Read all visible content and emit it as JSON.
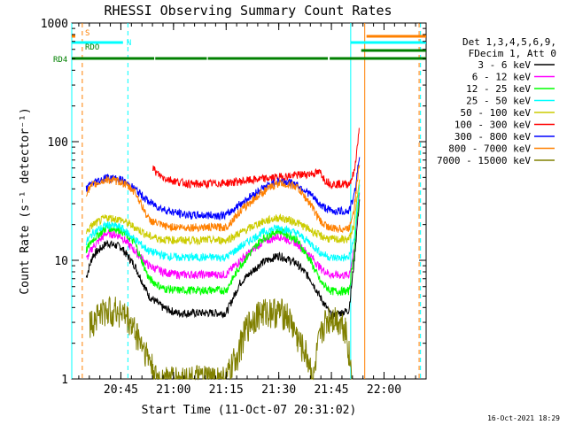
{
  "chart_data": {
    "type": "line",
    "title": "RHESSI Observing Summary Count Rates",
    "xlabel": "Start Time (11-Oct-07 20:31:02)",
    "ylabel": "Count Rate (s⁻¹ detector⁻¹)",
    "y_scale": "log",
    "ylim": [
      1,
      1000
    ],
    "xlim_minutes": [
      0,
      101
    ],
    "x_ticks": [
      {
        "label": "20:45",
        "minute": 14
      },
      {
        "label": "21:00",
        "minute": 29
      },
      {
        "label": "21:15",
        "minute": 44
      },
      {
        "label": "21:30",
        "minute": 59
      },
      {
        "label": "21:45",
        "minute": 74
      },
      {
        "label": "22:00",
        "minute": 89
      }
    ],
    "y_ticks": [
      {
        "label": "1",
        "value": 1
      },
      {
        "label": "10",
        "value": 10
      },
      {
        "label": "100",
        "value": 100
      },
      {
        "label": "1000",
        "value": 1000
      }
    ],
    "legend_title": [
      "Det 1,3,4,5,6,9,",
      "FDecim 1, Att 0"
    ],
    "legend_position": "right",
    "series": [
      {
        "name": "3 - 6 keV",
        "color": "#000000",
        "points": [
          [
            4,
            7
          ],
          [
            6,
            11
          ],
          [
            10,
            14
          ],
          [
            14,
            13
          ],
          [
            18,
            9
          ],
          [
            22,
            5
          ],
          [
            26,
            4
          ],
          [
            30,
            3.6
          ],
          [
            34,
            3.6
          ],
          [
            38,
            3.6
          ],
          [
            44,
            3.6
          ],
          [
            48,
            6.5
          ],
          [
            54,
            9.5
          ],
          [
            59,
            11
          ],
          [
            64,
            9.5
          ],
          [
            68,
            7
          ],
          [
            71,
            4.8
          ],
          [
            74,
            3.4
          ],
          [
            79,
            3.8
          ],
          [
            80.5,
            10
          ],
          [
            82,
            33
          ]
        ]
      },
      {
        "name": "6 - 12 keV",
        "color": "#ff00ff",
        "points": [
          [
            4,
            10
          ],
          [
            6,
            13
          ],
          [
            10,
            17
          ],
          [
            14,
            16
          ],
          [
            18,
            12
          ],
          [
            22,
            9
          ],
          [
            26,
            8
          ],
          [
            30,
            7.6
          ],
          [
            34,
            7.6
          ],
          [
            38,
            7.6
          ],
          [
            44,
            7.6
          ],
          [
            48,
            10
          ],
          [
            54,
            14
          ],
          [
            59,
            16
          ],
          [
            64,
            14
          ],
          [
            68,
            11
          ],
          [
            71,
            8.5
          ],
          [
            74,
            7.5
          ],
          [
            79,
            7.5
          ],
          [
            80.5,
            12
          ],
          [
            82,
            38
          ]
        ]
      },
      {
        "name": "12 - 25 keV",
        "color": "#00ff00",
        "points": [
          [
            4,
            12
          ],
          [
            6,
            15
          ],
          [
            10,
            19
          ],
          [
            14,
            18
          ],
          [
            18,
            14
          ],
          [
            22,
            7
          ],
          [
            26,
            5.8
          ],
          [
            30,
            5.6
          ],
          [
            34,
            5.6
          ],
          [
            38,
            5.6
          ],
          [
            44,
            5.6
          ],
          [
            48,
            9
          ],
          [
            54,
            15
          ],
          [
            59,
            18
          ],
          [
            64,
            15
          ],
          [
            68,
            10
          ],
          [
            71,
            6.5
          ],
          [
            74,
            5.5
          ],
          [
            79,
            5.5
          ],
          [
            80.5,
            12
          ],
          [
            82,
            40
          ]
        ]
      },
      {
        "name": "25 - 50 keV",
        "color": "#00ffff",
        "points": [
          [
            4,
            14
          ],
          [
            6,
            17
          ],
          [
            10,
            20
          ],
          [
            14,
            19
          ],
          [
            18,
            15
          ],
          [
            22,
            12
          ],
          [
            26,
            11
          ],
          [
            30,
            10.6
          ],
          [
            34,
            10.6
          ],
          [
            38,
            10.6
          ],
          [
            44,
            10.6
          ],
          [
            48,
            13
          ],
          [
            54,
            17
          ],
          [
            59,
            19
          ],
          [
            64,
            17
          ],
          [
            68,
            14
          ],
          [
            71,
            11.5
          ],
          [
            74,
            10.5
          ],
          [
            79,
            10.5
          ],
          [
            80.5,
            15
          ],
          [
            82,
            45
          ]
        ]
      },
      {
        "name": "50 - 100 keV",
        "color": "#cccc00",
        "points": [
          [
            4,
            17
          ],
          [
            6,
            20
          ],
          [
            10,
            23
          ],
          [
            14,
            22
          ],
          [
            18,
            19
          ],
          [
            22,
            16
          ],
          [
            26,
            15
          ],
          [
            30,
            14.8
          ],
          [
            34,
            14.8
          ],
          [
            38,
            14.8
          ],
          [
            44,
            14.8
          ],
          [
            48,
            17
          ],
          [
            54,
            21
          ],
          [
            59,
            23
          ],
          [
            64,
            21
          ],
          [
            68,
            18
          ],
          [
            71,
            16
          ],
          [
            74,
            15
          ],
          [
            79,
            15
          ],
          [
            80.5,
            20
          ],
          [
            82,
            52
          ]
        ]
      },
      {
        "name": "100 - 300 keV",
        "color": "#ff0000",
        "points": [
          [
            23,
            62
          ],
          [
            24,
            55
          ],
          [
            26,
            50
          ],
          [
            30,
            46
          ],
          [
            34,
            44
          ],
          [
            38,
            44
          ],
          [
            44,
            45
          ],
          [
            71,
            55
          ],
          [
            72,
            48
          ],
          [
            74,
            44
          ],
          [
            79,
            44
          ],
          [
            80.5,
            55
          ],
          [
            82,
            130
          ]
        ]
      },
      {
        "name": "300 - 800 keV",
        "color": "#0000ff",
        "points": [
          [
            4,
            40
          ],
          [
            6,
            45
          ],
          [
            10,
            50
          ],
          [
            14,
            48
          ],
          [
            18,
            40
          ],
          [
            22,
            31
          ],
          [
            26,
            27
          ],
          [
            30,
            25
          ],
          [
            34,
            24
          ],
          [
            38,
            24
          ],
          [
            44,
            24
          ],
          [
            48,
            30
          ],
          [
            54,
            40
          ],
          [
            59,
            47
          ],
          [
            64,
            44
          ],
          [
            68,
            36
          ],
          [
            71,
            29
          ],
          [
            74,
            26
          ],
          [
            79,
            26
          ],
          [
            80.5,
            35
          ],
          [
            82,
            75
          ]
        ]
      },
      {
        "name": "800 - 7000 keV",
        "color": "#ff8000",
        "points": [
          [
            4,
            37
          ],
          [
            6,
            43
          ],
          [
            10,
            48
          ],
          [
            14,
            46
          ],
          [
            18,
            38
          ],
          [
            22,
            22
          ],
          [
            26,
            19.5
          ],
          [
            30,
            19
          ],
          [
            34,
            19
          ],
          [
            38,
            19
          ],
          [
            44,
            19
          ],
          [
            48,
            26
          ],
          [
            54,
            37
          ],
          [
            59,
            45
          ],
          [
            64,
            42
          ],
          [
            68,
            30
          ],
          [
            71,
            21
          ],
          [
            74,
            18.5
          ],
          [
            79,
            18.5
          ],
          [
            80.5,
            28
          ],
          [
            82,
            68
          ]
        ]
      },
      {
        "name": "7000 - 15000 keV",
        "color": "#808000",
        "points": [
          [
            5,
            2.8
          ],
          [
            7,
            3.5
          ],
          [
            10,
            3.8
          ],
          [
            14,
            3.8
          ],
          [
            16,
            3.2
          ],
          [
            18,
            2.6
          ],
          [
            20,
            2
          ],
          [
            22,
            1.5
          ],
          [
            24,
            1
          ],
          [
            44,
            1
          ],
          [
            47,
            1.6
          ],
          [
            50,
            2.8
          ],
          [
            53,
            3.6
          ],
          [
            57,
            3.8
          ],
          [
            61,
            3.6
          ],
          [
            63,
            2.8
          ],
          [
            65,
            2
          ],
          [
            67,
            1.6
          ],
          [
            69,
            1
          ],
          [
            70,
            1.8
          ],
          [
            72,
            3
          ],
          [
            74,
            3.4
          ],
          [
            76,
            3.2
          ],
          [
            78,
            2.8
          ],
          [
            80,
            1
          ]
        ]
      }
    ],
    "state_bars": [
      {
        "label": "S",
        "color": "#ff8000",
        "segments": [
          [
            0,
            1
          ]
        ]
      },
      {
        "label": "N",
        "color": "#00ffff",
        "segments": [
          [
            0,
            14.6
          ]
        ]
      },
      {
        "label": "RDO",
        "color": "#008000",
        "segments": [
          [
            82.5,
            101
          ]
        ]
      },
      {
        "label": "RD4",
        "color": "#008000",
        "segments": [
          [
            0,
            23.5
          ],
          [
            23.8,
            38.5
          ],
          [
            38.8,
            73
          ],
          [
            73.5,
            101
          ]
        ]
      }
    ],
    "state_bars_right": [
      {
        "label": "S",
        "color": "#ff8000",
        "segments": [
          [
            84,
            101
          ]
        ]
      },
      {
        "label": "N",
        "color": "#00ffff",
        "segments": [
          [
            79.5,
            101
          ]
        ]
      }
    ],
    "vertical_markers": [
      {
        "minute": 0,
        "color": "#00ffff",
        "style": "solid"
      },
      {
        "minute": 3,
        "color": "#ff8000",
        "style": "dashed"
      },
      {
        "minute": 16,
        "color": "#00ffff",
        "style": "dashed"
      },
      {
        "minute": 79.5,
        "color": "#00ffff",
        "style": "solid"
      },
      {
        "minute": 83.5,
        "color": "#ff8000",
        "style": "solid"
      },
      {
        "minute": 99,
        "color": "#ff8000",
        "style": "dashed"
      },
      {
        "minute": 99.4,
        "color": "#00ffff",
        "style": "dashed"
      }
    ]
  },
  "footer": {
    "timestamp": "16-Oct-2021 18:29"
  }
}
